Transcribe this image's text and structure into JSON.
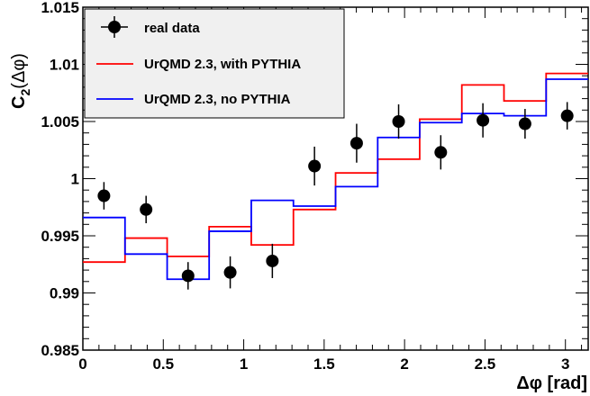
{
  "chart_data": {
    "type": "scatter",
    "xlabel": "Δφ [rad]",
    "ylabel_main": "C",
    "ylabel_sub": "2",
    "ylabel_tail": "(Δφ)",
    "xlim": [
      0,
      3.1416
    ],
    "ylim": [
      0.985,
      1.015
    ],
    "x_ticks": [
      0,
      0.5,
      1,
      1.5,
      2,
      2.5,
      3
    ],
    "x_tick_labels": [
      "0",
      "0.5",
      "1",
      "1.5",
      "2",
      "2.5",
      "3"
    ],
    "y_ticks": [
      0.985,
      0.99,
      0.995,
      1,
      1.005,
      1.01,
      1.015
    ],
    "y_tick_labels": [
      "0.985",
      "0.99",
      "0.995",
      "1",
      "1.005",
      "1.01",
      "1.015"
    ],
    "grid": false,
    "legend_position": "top-left",
    "series": [
      {
        "name": "real data",
        "kind": "points",
        "color": "#000000",
        "x": [
          0.131,
          0.393,
          0.654,
          0.916,
          1.178,
          1.44,
          1.702,
          1.963,
          2.225,
          2.487,
          2.749,
          3.011
        ],
        "y": [
          0.9985,
          0.9973,
          0.9915,
          0.9918,
          0.9928,
          1.0011,
          1.0031,
          1.005,
          1.0023,
          1.0051,
          1.0048,
          1.0055
        ],
        "err": [
          0.0012,
          0.0012,
          0.0012,
          0.0014,
          0.0015,
          0.0017,
          0.0017,
          0.0015,
          0.0015,
          0.0015,
          0.0013,
          0.0012
        ]
      },
      {
        "name": "UrQMD 2.3, with PYTHIA",
        "kind": "step",
        "color": "#ff0000",
        "edges": [
          0,
          0.262,
          0.524,
          0.785,
          1.047,
          1.309,
          1.571,
          1.833,
          2.094,
          2.356,
          2.618,
          2.88,
          3.1416
        ],
        "values": [
          0.9927,
          0.9948,
          0.9932,
          0.9958,
          0.9942,
          0.9973,
          1.0005,
          1.0017,
          1.0052,
          1.0082,
          1.0068,
          1.0092
        ]
      },
      {
        "name": "UrQMD 2.3, no PYTHIA",
        "kind": "step",
        "color": "#0000ff",
        "edges": [
          0,
          0.262,
          0.524,
          0.785,
          1.047,
          1.309,
          1.571,
          1.833,
          2.094,
          2.356,
          2.618,
          2.88,
          3.1416
        ],
        "values": [
          0.9966,
          0.9934,
          0.9912,
          0.9954,
          0.9981,
          0.9976,
          0.9993,
          1.0036,
          1.0049,
          1.0057,
          1.0055,
          1.0087
        ]
      }
    ]
  }
}
